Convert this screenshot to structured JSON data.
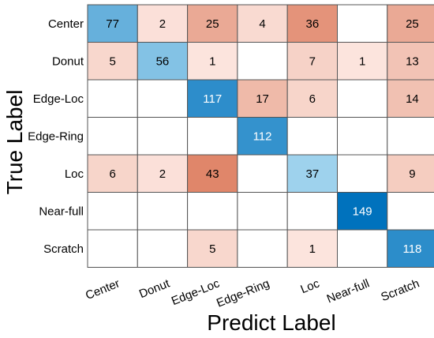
{
  "chart_data": {
    "type": "heatmap",
    "title": "",
    "xlabel": "Predict Label",
    "ylabel": "True Label",
    "x_categories": [
      "Center",
      "Donut",
      "Edge-Loc",
      "Edge-Ring",
      "Loc",
      "Near-full",
      "Scratch"
    ],
    "y_categories": [
      "Center",
      "Donut",
      "Edge-Loc",
      "Edge-Ring",
      "Loc",
      "Near-full",
      "Scratch"
    ],
    "values": [
      [
        77,
        2,
        25,
        4,
        36,
        null,
        25
      ],
      [
        5,
        56,
        1,
        null,
        7,
        1,
        13
      ],
      [
        null,
        null,
        117,
        17,
        6,
        null,
        14
      ],
      [
        null,
        null,
        null,
        112,
        null,
        null,
        null
      ],
      [
        6,
        2,
        43,
        null,
        37,
        null,
        9
      ],
      [
        null,
        null,
        null,
        null,
        null,
        149,
        null
      ],
      [
        null,
        null,
        5,
        null,
        1,
        null,
        118
      ]
    ],
    "colors": {
      "diagonal_high": "#0072bd",
      "diagonal_low": "#a8d8f0",
      "off_diagonal_high": "#e0866a",
      "off_diagonal_low": "#fde9e3",
      "empty": "#ffffff",
      "grid": "#555555"
    }
  }
}
